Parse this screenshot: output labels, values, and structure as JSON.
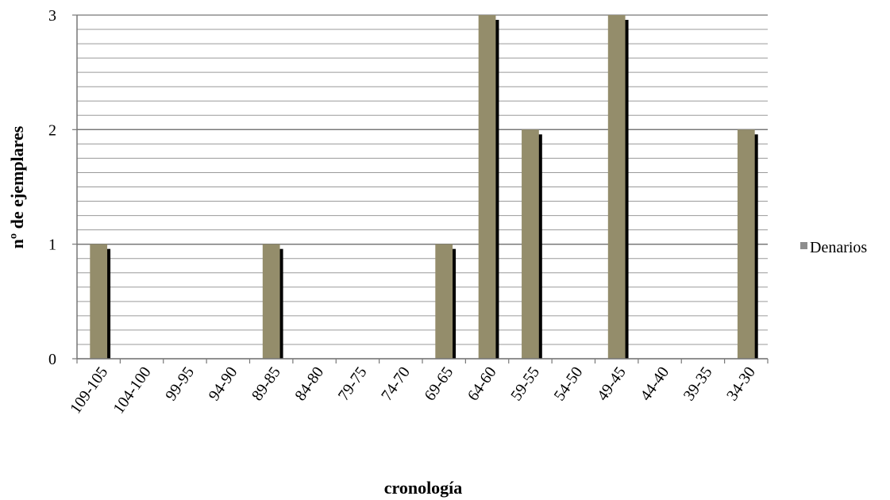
{
  "chart_data": {
    "type": "bar",
    "xlabel": "cronología",
    "ylabel": "nº de ejemplares",
    "ylim": [
      0,
      3
    ],
    "yticks": [
      0,
      1,
      2,
      3
    ],
    "minor_gridlines_per_unit": 8,
    "grid": true,
    "legend_position": "right",
    "categories": [
      "109-105",
      "104-100",
      "99-95",
      "94-90",
      "89-85",
      "84-80",
      "79-75",
      "74-70",
      "69-65",
      "64-60",
      "59-55",
      "54-50",
      "49-45",
      "44-40",
      "39-35",
      "34-30"
    ],
    "series": [
      {
        "name": "Denarios",
        "color": "#948d6b",
        "shadow_color": "#000000",
        "values": [
          1,
          0,
          0,
          0,
          1,
          0,
          0,
          0,
          1,
          3,
          2,
          0,
          3,
          0,
          0,
          2
        ]
      }
    ]
  }
}
